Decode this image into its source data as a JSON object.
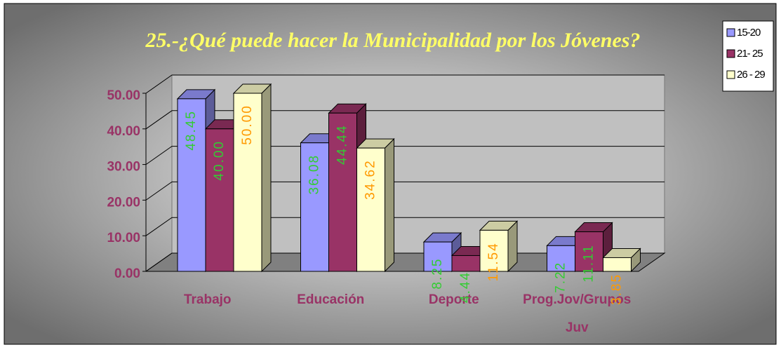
{
  "chart_data": {
    "type": "bar3d",
    "title": "25.-¿Qué puede hacer la Municipalidad por los Jóvenes?",
    "categories": [
      "Trabajo",
      "Educación",
      "Deporte",
      "Prog.Jov/Grupos Juv"
    ],
    "series": [
      {
        "name": "15-20",
        "color": "#9999ff",
        "label_color": "#33cc33",
        "values": [
          48.45,
          36.08,
          8.25,
          7.22
        ],
        "value_labels": [
          "48.45",
          "36.08",
          "8.25",
          "7.22"
        ]
      },
      {
        "name": "21- 25",
        "color": "#993366",
        "label_color": "#33cc33",
        "values": [
          40.0,
          44.44,
          4.44,
          11.11
        ],
        "value_labels": [
          "40.00",
          "44.44",
          "4.44",
          "11.11"
        ]
      },
      {
        "name": "26 - 29",
        "color": "#ffffcc",
        "label_color": "#ff9900",
        "values": [
          50.0,
          34.62,
          11.54,
          3.85
        ],
        "value_labels": [
          "50.00",
          "34.62",
          "11.54",
          "3.85"
        ]
      }
    ],
    "ylim": [
      0,
      50
    ],
    "yticks": [
      {
        "value": 0,
        "label": "0.00"
      },
      {
        "value": 10,
        "label": "10.00"
      },
      {
        "value": 20,
        "label": "20.00"
      },
      {
        "value": 30,
        "label": "30.00"
      },
      {
        "value": 40,
        "label": "40.00"
      },
      {
        "value": 50,
        "label": "50.00"
      }
    ],
    "grid": true,
    "legend": "right"
  }
}
